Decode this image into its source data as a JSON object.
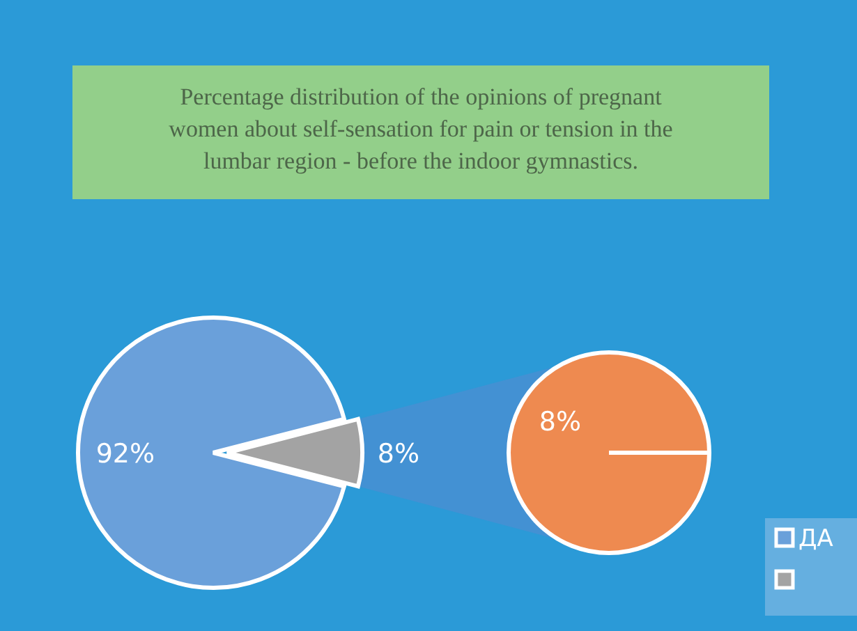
{
  "chart_data": [
    {
      "type": "pie",
      "title": "Percentage distribution of the opinions of pregnant women about self-sensation for pain or tension in the lumbar region - before the indoor gymnastics.",
      "categories": [
        "ДА",
        null
      ],
      "values": [
        92,
        8
      ],
      "colors": [
        "#6aa0da",
        "#a3a3a3"
      ],
      "value_labels": [
        "92%",
        "8%"
      ],
      "legend": "bottom right"
    },
    {
      "type": "pie",
      "categories": [
        null
      ],
      "values": [
        8
      ],
      "colors": [
        "#ee8a50"
      ],
      "value_labels": [
        "8%"
      ]
    }
  ]
}
